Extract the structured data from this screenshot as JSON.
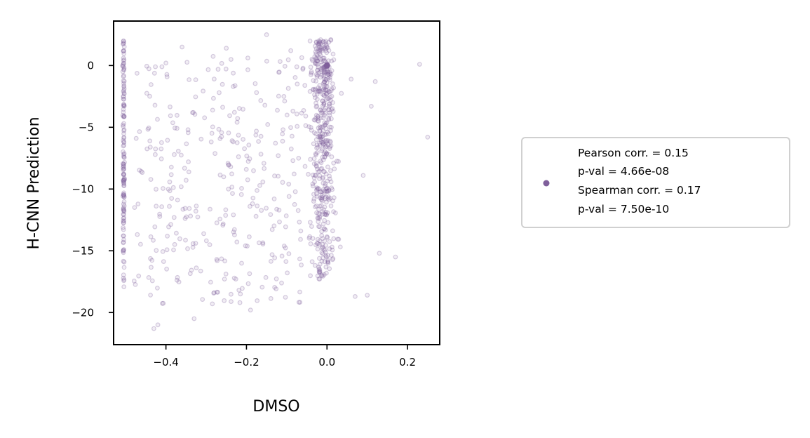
{
  "chart_data": {
    "type": "scatter",
    "xlabel": "DMSO",
    "ylabel": "H-CNN Prediction",
    "xlim": [
      -0.53,
      0.28
    ],
    "ylim": [
      -22.6,
      3.6
    ],
    "x_ticks": [
      -0.4,
      -0.2,
      0.0,
      0.2
    ],
    "x_tick_labels": [
      "−0.4",
      "−0.2",
      "0.0",
      "0.2"
    ],
    "y_ticks": [
      0,
      -5,
      -10,
      -15,
      -20
    ],
    "y_tick_labels": [
      "0",
      "−5",
      "−10",
      "−15",
      "−20"
    ],
    "grid": false,
    "point_color": "#7f5f9b",
    "point_opacity": 0.22,
    "legend": {
      "placement": "right, outside plot",
      "lines": [
        "Pearson corr. = 0.15",
        "p-val = 4.66e-08",
        "Spearman corr. = 0.17",
        "p-val = 7.50e-10"
      ]
    },
    "highlight_point": {
      "x": 0.0,
      "y": 0.0
    },
    "outlier_points": [
      {
        "x": 0.25,
        "y": -5.8
      },
      {
        "x": 0.23,
        "y": 0.1
      },
      {
        "x": 0.17,
        "y": -15.5
      },
      {
        "x": 0.13,
        "y": -15.2
      },
      {
        "x": 0.12,
        "y": -1.3
      },
      {
        "x": 0.1,
        "y": -18.6
      },
      {
        "x": 0.07,
        "y": -18.7
      },
      {
        "x": -0.43,
        "y": -21.3
      },
      {
        "x": -0.42,
        "y": -21.0
      },
      {
        "x": -0.33,
        "y": -20.5
      },
      {
        "x": -0.19,
        "y": -19.8
      },
      {
        "x": -0.36,
        "y": 1.5
      },
      {
        "x": -0.15,
        "y": 2.5
      },
      {
        "x": -0.25,
        "y": 1.4
      },
      {
        "x": -0.41,
        "y": -0.1
      },
      {
        "x": -0.4,
        "y": 0.2
      },
      {
        "x": -0.09,
        "y": 1.2
      },
      {
        "x": -0.06,
        "y": -0.3
      },
      {
        "x": 0.09,
        "y": -8.9
      },
      {
        "x": 0.11,
        "y": -3.3
      },
      {
        "x": 0.06,
        "y": -1.1
      }
    ],
    "left_column_x": -0.505,
    "left_column_count": 140,
    "left_column_y_range": [
      -18.2,
      2.0
    ],
    "dense_cluster_x_range": [
      -0.09,
      0.05
    ],
    "dense_cluster_count": 480,
    "dense_cluster_y_range": [
      -17.3,
      2.1
    ],
    "background_x_range": [
      -0.48,
      -0.05
    ],
    "background_count": 330,
    "background_y_range": [
      -19.5,
      0.8
    ]
  }
}
